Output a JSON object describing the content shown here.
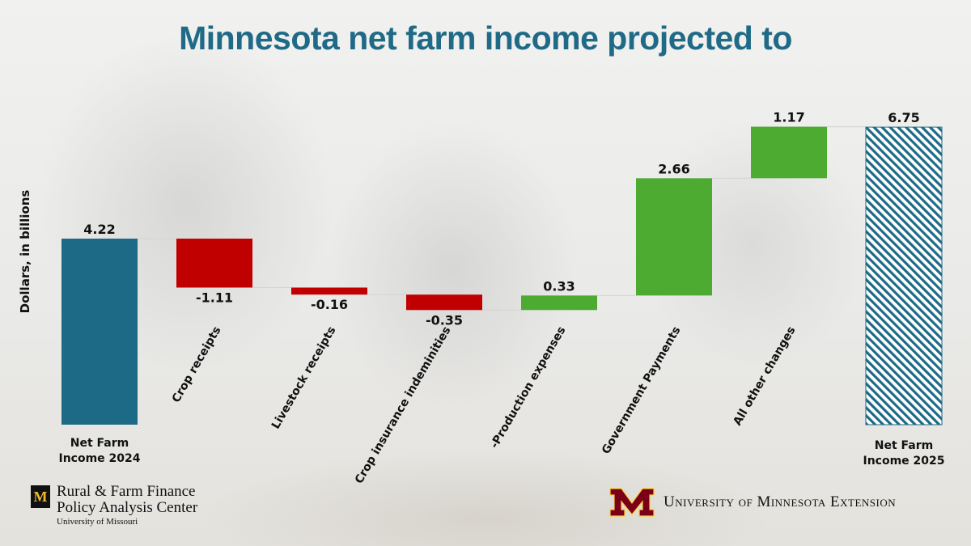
{
  "title": "Minnesota net farm income projected to",
  "colors": {
    "title": "#1f6a86",
    "start_bar": "#1d6a86",
    "negative": "#c00000",
    "positive": "#4eab32",
    "end_bar_hatch": "#1d6a86",
    "connector": "#d4d4d4"
  },
  "chart_data": {
    "type": "bar",
    "subtype": "waterfall",
    "title": "Minnesota net farm income projected to",
    "ylabel": "Dollars, in billions",
    "ylim": [
      0,
      7.5
    ],
    "grid": false,
    "legend": "none",
    "categories": [
      "Net Farm Income 2024",
      "Crop receipts",
      "Livestock receipts",
      "Crop insurance indeminities",
      "-Production expenses",
      "Government Payments",
      "All other changes",
      "Net Farm Income 2025"
    ],
    "values": [
      4.22,
      -1.11,
      -0.16,
      -0.35,
      0.33,
      2.66,
      1.17,
      6.75
    ],
    "value_labels": [
      "4.22",
      "-1.11",
      "-0.16",
      "-0.35",
      "0.33",
      "2.66",
      "1.17",
      "6.75"
    ],
    "kinds": [
      "total",
      "change",
      "change",
      "change",
      "change",
      "change",
      "change",
      "total"
    ]
  },
  "end_labels": {
    "start": [
      "Net Farm",
      "Income 2024"
    ],
    "end": [
      "Net Farm",
      "Income 2025"
    ]
  },
  "logos": {
    "left": {
      "mark": "M",
      "line1": "Rural & Farm Finance",
      "line2": "Policy Analysis Center",
      "line3": "University of Missouri"
    },
    "right": {
      "text": "University of Minnesota Extension",
      "mark_icon": "umn-m-icon"
    }
  }
}
